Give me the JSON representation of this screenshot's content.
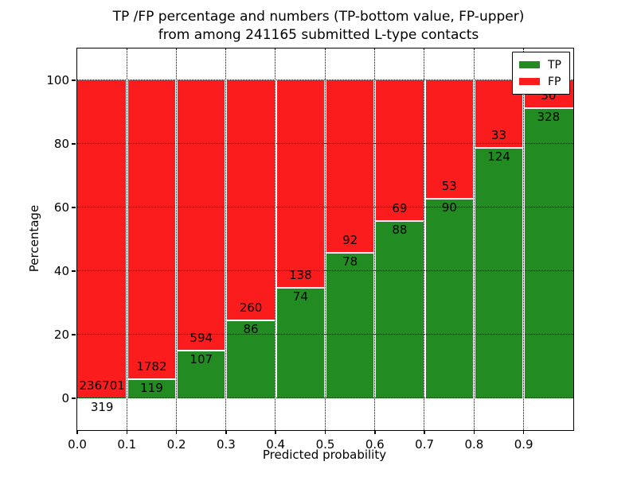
{
  "chart_data": {
    "type": "bar",
    "stacked": true,
    "title_line1": "TP /FP percentage and numbers (TP-bottom value, FP-upper)",
    "title_line2": "from among 241165 submitted L-type contacts",
    "total_submitted": 241165,
    "xlabel": "Predicted probability",
    "ylabel": "Percentage",
    "xlim": [
      0.0,
      1.0
    ],
    "ylim": [
      -10,
      110
    ],
    "xticks": [
      0.0,
      0.1,
      0.2,
      0.3,
      0.4,
      0.5,
      0.6,
      0.7,
      0.8,
      0.9
    ],
    "xtick_labels": [
      "0.0",
      "0.1",
      "0.2",
      "0.3",
      "0.4",
      "0.5",
      "0.6",
      "0.7",
      "0.8",
      "0.9"
    ],
    "yticks": [
      0,
      20,
      40,
      60,
      80,
      100
    ],
    "ytick_labels": [
      "0",
      "20",
      "40",
      "60",
      "80",
      "100"
    ],
    "grid": true,
    "legend": {
      "position": "upper-right",
      "entries": [
        {
          "label": "TP",
          "color": "#228b22"
        },
        {
          "label": "FP",
          "color": "#fb1d1d"
        }
      ]
    },
    "series_note": "Each bin stacks TP% (green, bottom) and FP% (red, top) to 100%; labels show raw counts: TP below boundary, FP above boundary",
    "bins": [
      {
        "range": [
          0.0,
          0.1
        ],
        "tp": 319,
        "fp": 236701,
        "tp_pct": 0.1
      },
      {
        "range": [
          0.1,
          0.2
        ],
        "tp": 119,
        "fp": 1782,
        "tp_pct": 6.3
      },
      {
        "range": [
          0.2,
          0.3
        ],
        "tp": 107,
        "fp": 594,
        "tp_pct": 15.3
      },
      {
        "range": [
          0.3,
          0.4
        ],
        "tp": 86,
        "fp": 260,
        "tp_pct": 24.9
      },
      {
        "range": [
          0.4,
          0.5
        ],
        "tp": 74,
        "fp": 138,
        "tp_pct": 34.9
      },
      {
        "range": [
          0.5,
          0.6
        ],
        "tp": 78,
        "fp": 92,
        "tp_pct": 45.9
      },
      {
        "range": [
          0.6,
          0.7
        ],
        "tp": 88,
        "fp": 69,
        "tp_pct": 56.1
      },
      {
        "range": [
          0.7,
          0.8
        ],
        "tp": 90,
        "fp": 53,
        "tp_pct": 62.9
      },
      {
        "range": [
          0.8,
          0.9
        ],
        "tp": 124,
        "fp": 33,
        "tp_pct": 79.0
      },
      {
        "range": [
          0.9,
          1.0
        ],
        "tp": 328,
        "fp": 30,
        "tp_pct": 91.6
      }
    ],
    "colors": {
      "tp": "#228b22",
      "fp": "#fb1d1d",
      "grid": "#000000",
      "background": "#ffffff",
      "bar_edge": "#ffffff"
    }
  }
}
